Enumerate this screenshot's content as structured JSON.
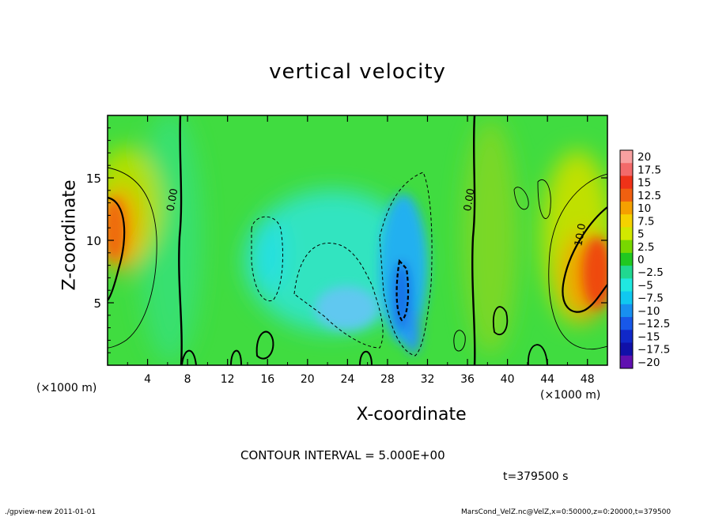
{
  "chart_data": {
    "type": "heatmap",
    "title": "vertical velocity",
    "xlabel": "X-coordinate",
    "ylabel": "Z-coordinate",
    "x_unit_label": "(×1000 m)",
    "y_unit_label": "(×1000 m)",
    "xlim": [
      0,
      50
    ],
    "ylim": [
      0,
      20
    ],
    "x_ticks": [
      4,
      8,
      12,
      16,
      20,
      24,
      28,
      32,
      36,
      40,
      44,
      48
    ],
    "y_ticks": [
      5,
      10,
      15
    ],
    "contour_interval_text": "CONTOUR INTERVAL = 5.000E+00",
    "time_text": "t=379500 s",
    "contour_labels": [
      {
        "text": "0.00",
        "x": 6.8,
        "y": 13.2
      },
      {
        "text": "0.00",
        "x": 36.5,
        "y": 13.2
      },
      {
        "text": "10.0",
        "x": 47.6,
        "y": 10.4
      }
    ],
    "colorbar": {
      "labels": [
        "20",
        "17.5",
        "15",
        "12.5",
        "10",
        "7.5",
        "5",
        "2.5",
        "0",
        "-2.5",
        "-5",
        "-7.5",
        "-10",
        "-12.5",
        "-15",
        "-17.5",
        "-20"
      ],
      "colors": [
        "#f8a0a0",
        "#f36a6a",
        "#ef3218",
        "#f06010",
        "#f5a000",
        "#f5d200",
        "#d2e800",
        "#78d800",
        "#20c820",
        "#20d890",
        "#20e8e0",
        "#10c8f0",
        "#1890f0",
        "#1858e8",
        "#1028c8",
        "#1010a8",
        "#6010b0"
      ]
    },
    "field_features": [
      {
        "name": "left updraft",
        "x": 0.5,
        "z": 10,
        "w_max": 12.5
      },
      {
        "name": "right updraft",
        "x": 49,
        "z": 7.5,
        "w_max": 14
      },
      {
        "name": "central downdraft",
        "x": 29.5,
        "z": 5,
        "w_min": -12
      },
      {
        "name": "broad downdraft",
        "x": 26,
        "z": 8,
        "w_min": -6
      }
    ]
  },
  "footer": {
    "left": "./gpview-new  2011-01-01",
    "right": "MarsCond_VelZ.nc@VelZ,x=0:50000,z=0:20000,t=379500"
  }
}
